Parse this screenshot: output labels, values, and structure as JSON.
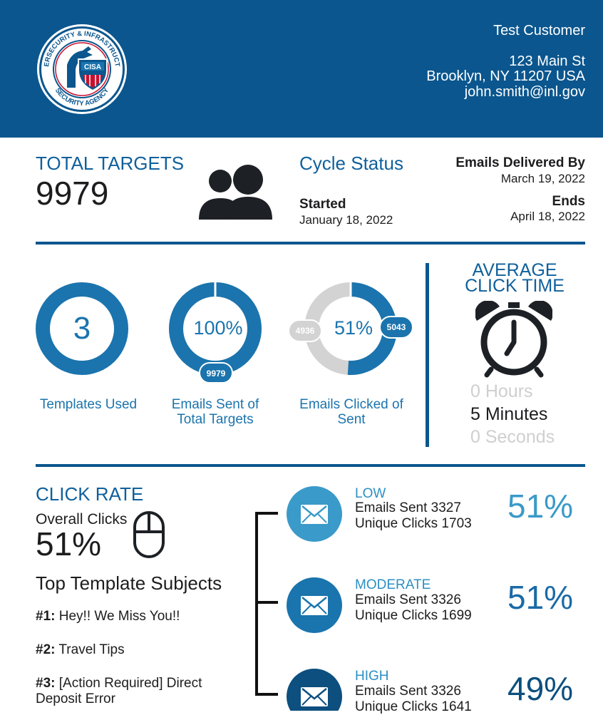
{
  "header": {
    "customer_name": "Test Customer",
    "address_line1": "123 Main St",
    "address_line2": "Brooklyn, NY 11207 USA",
    "email": "john.smith@inl.gov",
    "logo_text_top": "CYBERSECURITY & INFRASTRUCTURE",
    "logo_text_bottom": "SECURITY AGENCY",
    "logo_badge": "CISA"
  },
  "targets": {
    "label": "TOTAL TARGETS",
    "value": "9979"
  },
  "cycle": {
    "title": "Cycle Status",
    "started_label": "Started",
    "started_date": "January 18, 2022",
    "delivered_label": "Emails Delivered By",
    "delivered_date": "March 19, 2022",
    "ends_label": "Ends",
    "ends_date": "April 18, 2022"
  },
  "stats": {
    "templates": {
      "value": "3",
      "caption": "Templates Used"
    },
    "sent": {
      "value": "100%",
      "fraction": 1.0,
      "badge": "9979",
      "caption_l1": "Emails Sent of",
      "caption_l2": "Total Targets"
    },
    "clicked": {
      "value": "51%",
      "fraction": 0.51,
      "badge_left": "4936",
      "badge_right": "5043",
      "caption_l1": "Emails Clicked of",
      "caption_l2": "Sent"
    }
  },
  "avg_click": {
    "title_l1": "AVERAGE",
    "title_l2": "CLICK TIME",
    "hours": "0 Hours",
    "minutes": "5 Minutes",
    "seconds": "0 Seconds"
  },
  "click_rate": {
    "title": "CLICK RATE",
    "overall_label": "Overall Clicks",
    "overall_value": "51%",
    "top_subjects_title": "Top Template Subjects",
    "subjects": [
      {
        "rank": "#1:",
        "text": "Hey!! We Miss You!!"
      },
      {
        "rank": "#2:",
        "text": "Travel Tips"
      },
      {
        "rank": "#3:",
        "text": "[Action Required] Direct Deposit Error"
      }
    ],
    "tiers": [
      {
        "name": "LOW",
        "sent": "Emails Sent 3327",
        "clicks": "Unique Clicks 1703",
        "pct": "51%",
        "color": "#3a9ac9",
        "pct_color": "#3a9ac9"
      },
      {
        "name": "MODERATE",
        "sent": "Emails Sent 3326",
        "clicks": "Unique Clicks 1699",
        "pct": "51%",
        "color": "#1a74ad",
        "pct_color": "#1a6aa6"
      },
      {
        "name": "HIGH",
        "sent": "Emails Sent 3326",
        "clicks": "Unique Clicks 1641",
        "pct": "49%",
        "color": "#0d4f7e",
        "pct_color": "#0d4f7e"
      }
    ]
  }
}
